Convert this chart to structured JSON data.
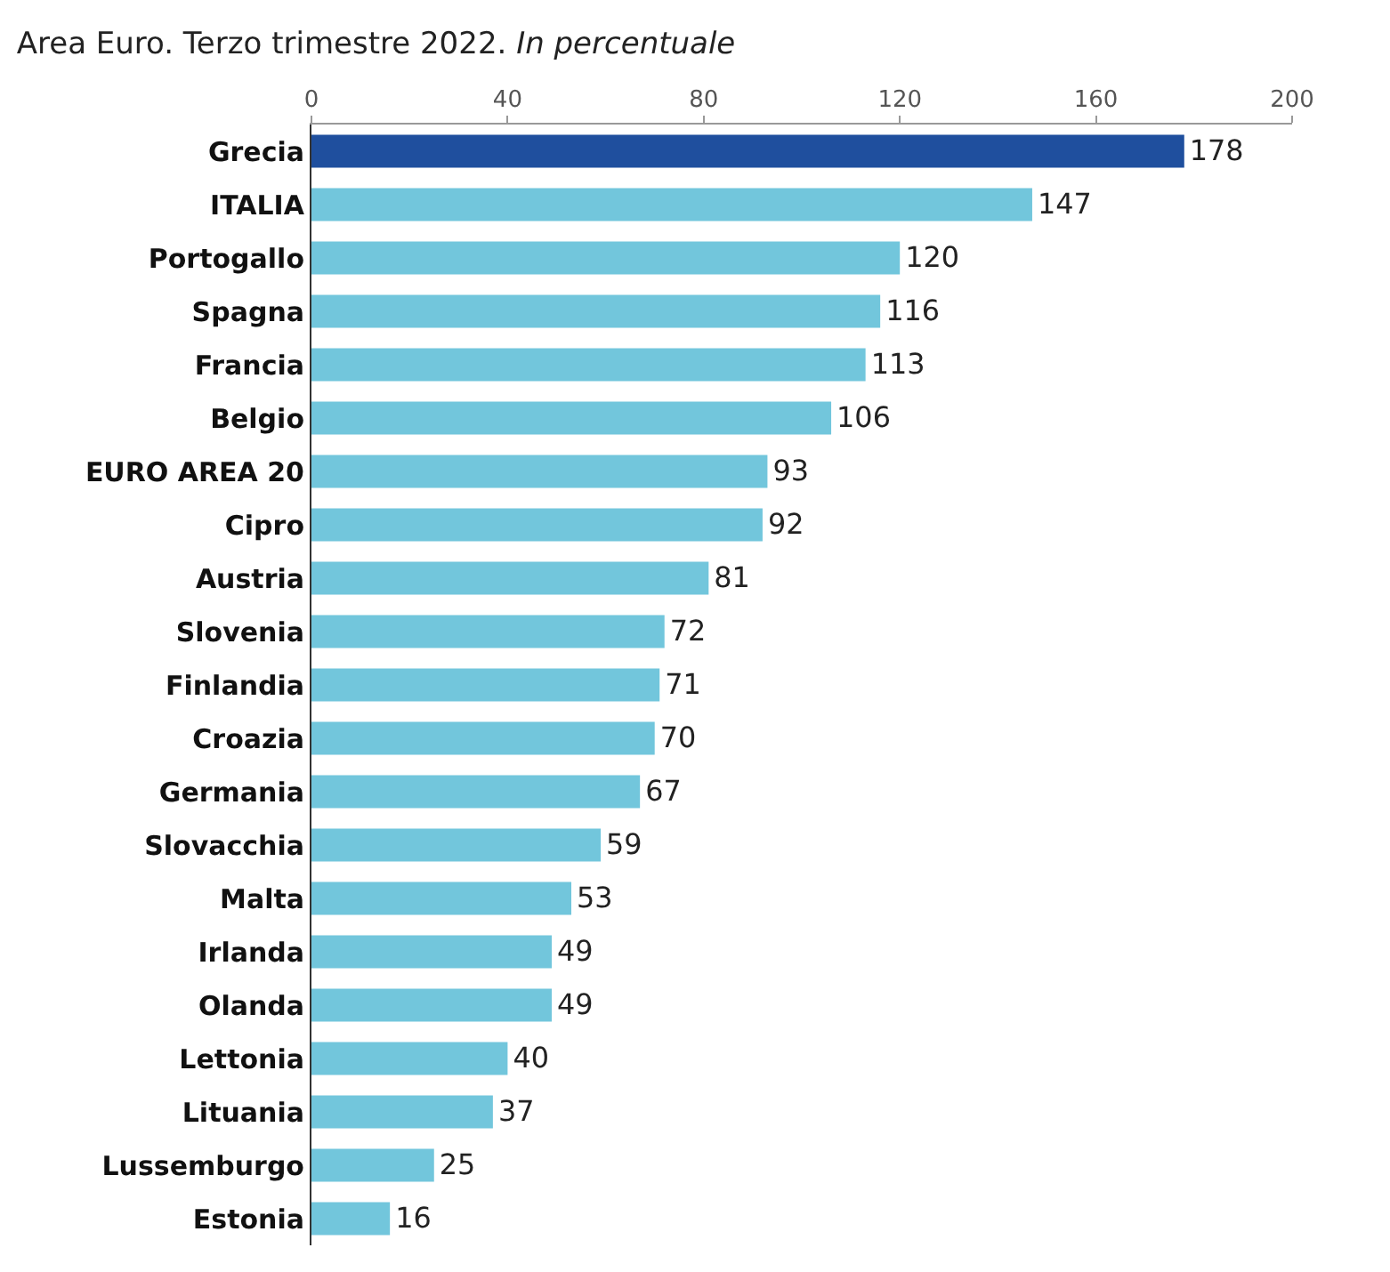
{
  "chart_data": {
    "type": "bar",
    "orientation": "horizontal",
    "title": "Area Euro. Terzo trimestre 2022.",
    "subtitle": "In percentuale",
    "categories": [
      "Grecia",
      "ITALIA",
      "Portogallo",
      "Spagna",
      "Francia",
      "Belgio",
      "EURO AREA 20",
      "Cipro",
      "Austria",
      "Slovenia",
      "Finlandia",
      "Croazia",
      "Germania",
      "Slovacchia",
      "Malta",
      "Irlanda",
      "Olanda",
      "Lettonia",
      "Lituania",
      "Lussemburgo",
      "Estonia"
    ],
    "values": [
      178,
      147,
      120,
      116,
      113,
      106,
      93,
      92,
      81,
      72,
      71,
      70,
      67,
      59,
      53,
      49,
      49,
      40,
      37,
      25,
      16
    ],
    "colors": [
      "#1f4f9e",
      "#72c6dc",
      "#72c6dc",
      "#72c6dc",
      "#72c6dc",
      "#72c6dc",
      "#72c6dc",
      "#72c6dc",
      "#72c6dc",
      "#72c6dc",
      "#72c6dc",
      "#72c6dc",
      "#72c6dc",
      "#72c6dc",
      "#72c6dc",
      "#72c6dc",
      "#72c6dc",
      "#72c6dc",
      "#72c6dc",
      "#72c6dc",
      "#72c6dc"
    ],
    "xlim": [
      0,
      200
    ],
    "xticks": [
      0,
      40,
      80,
      120,
      160,
      200
    ],
    "data_labels": true
  }
}
